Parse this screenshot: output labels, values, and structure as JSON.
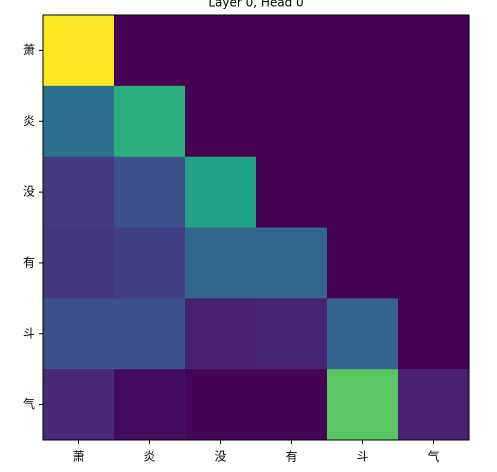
{
  "chart_data": {
    "type": "heatmap",
    "title": "Layer 0, Head 0",
    "x_labels": [
      "萧",
      "炎",
      "没",
      "有",
      "斗",
      "气"
    ],
    "y_labels": [
      "萧",
      "炎",
      "没",
      "有",
      "斗",
      "气"
    ],
    "colormap": "viridis",
    "values": [
      [
        1,
        0,
        0,
        0,
        0,
        0
      ],
      [
        0.37,
        0.63,
        0,
        0,
        0,
        0
      ],
      [
        0.17,
        0.25,
        0.58,
        0,
        0,
        0
      ],
      [
        0.16,
        0.18,
        0.33,
        0.33,
        0,
        0
      ],
      [
        0.25,
        0.25,
        0.09,
        0.1,
        0.31,
        0
      ],
      [
        0.12,
        0.03,
        0.01,
        0.01,
        0.74,
        0.09
      ]
    ]
  }
}
